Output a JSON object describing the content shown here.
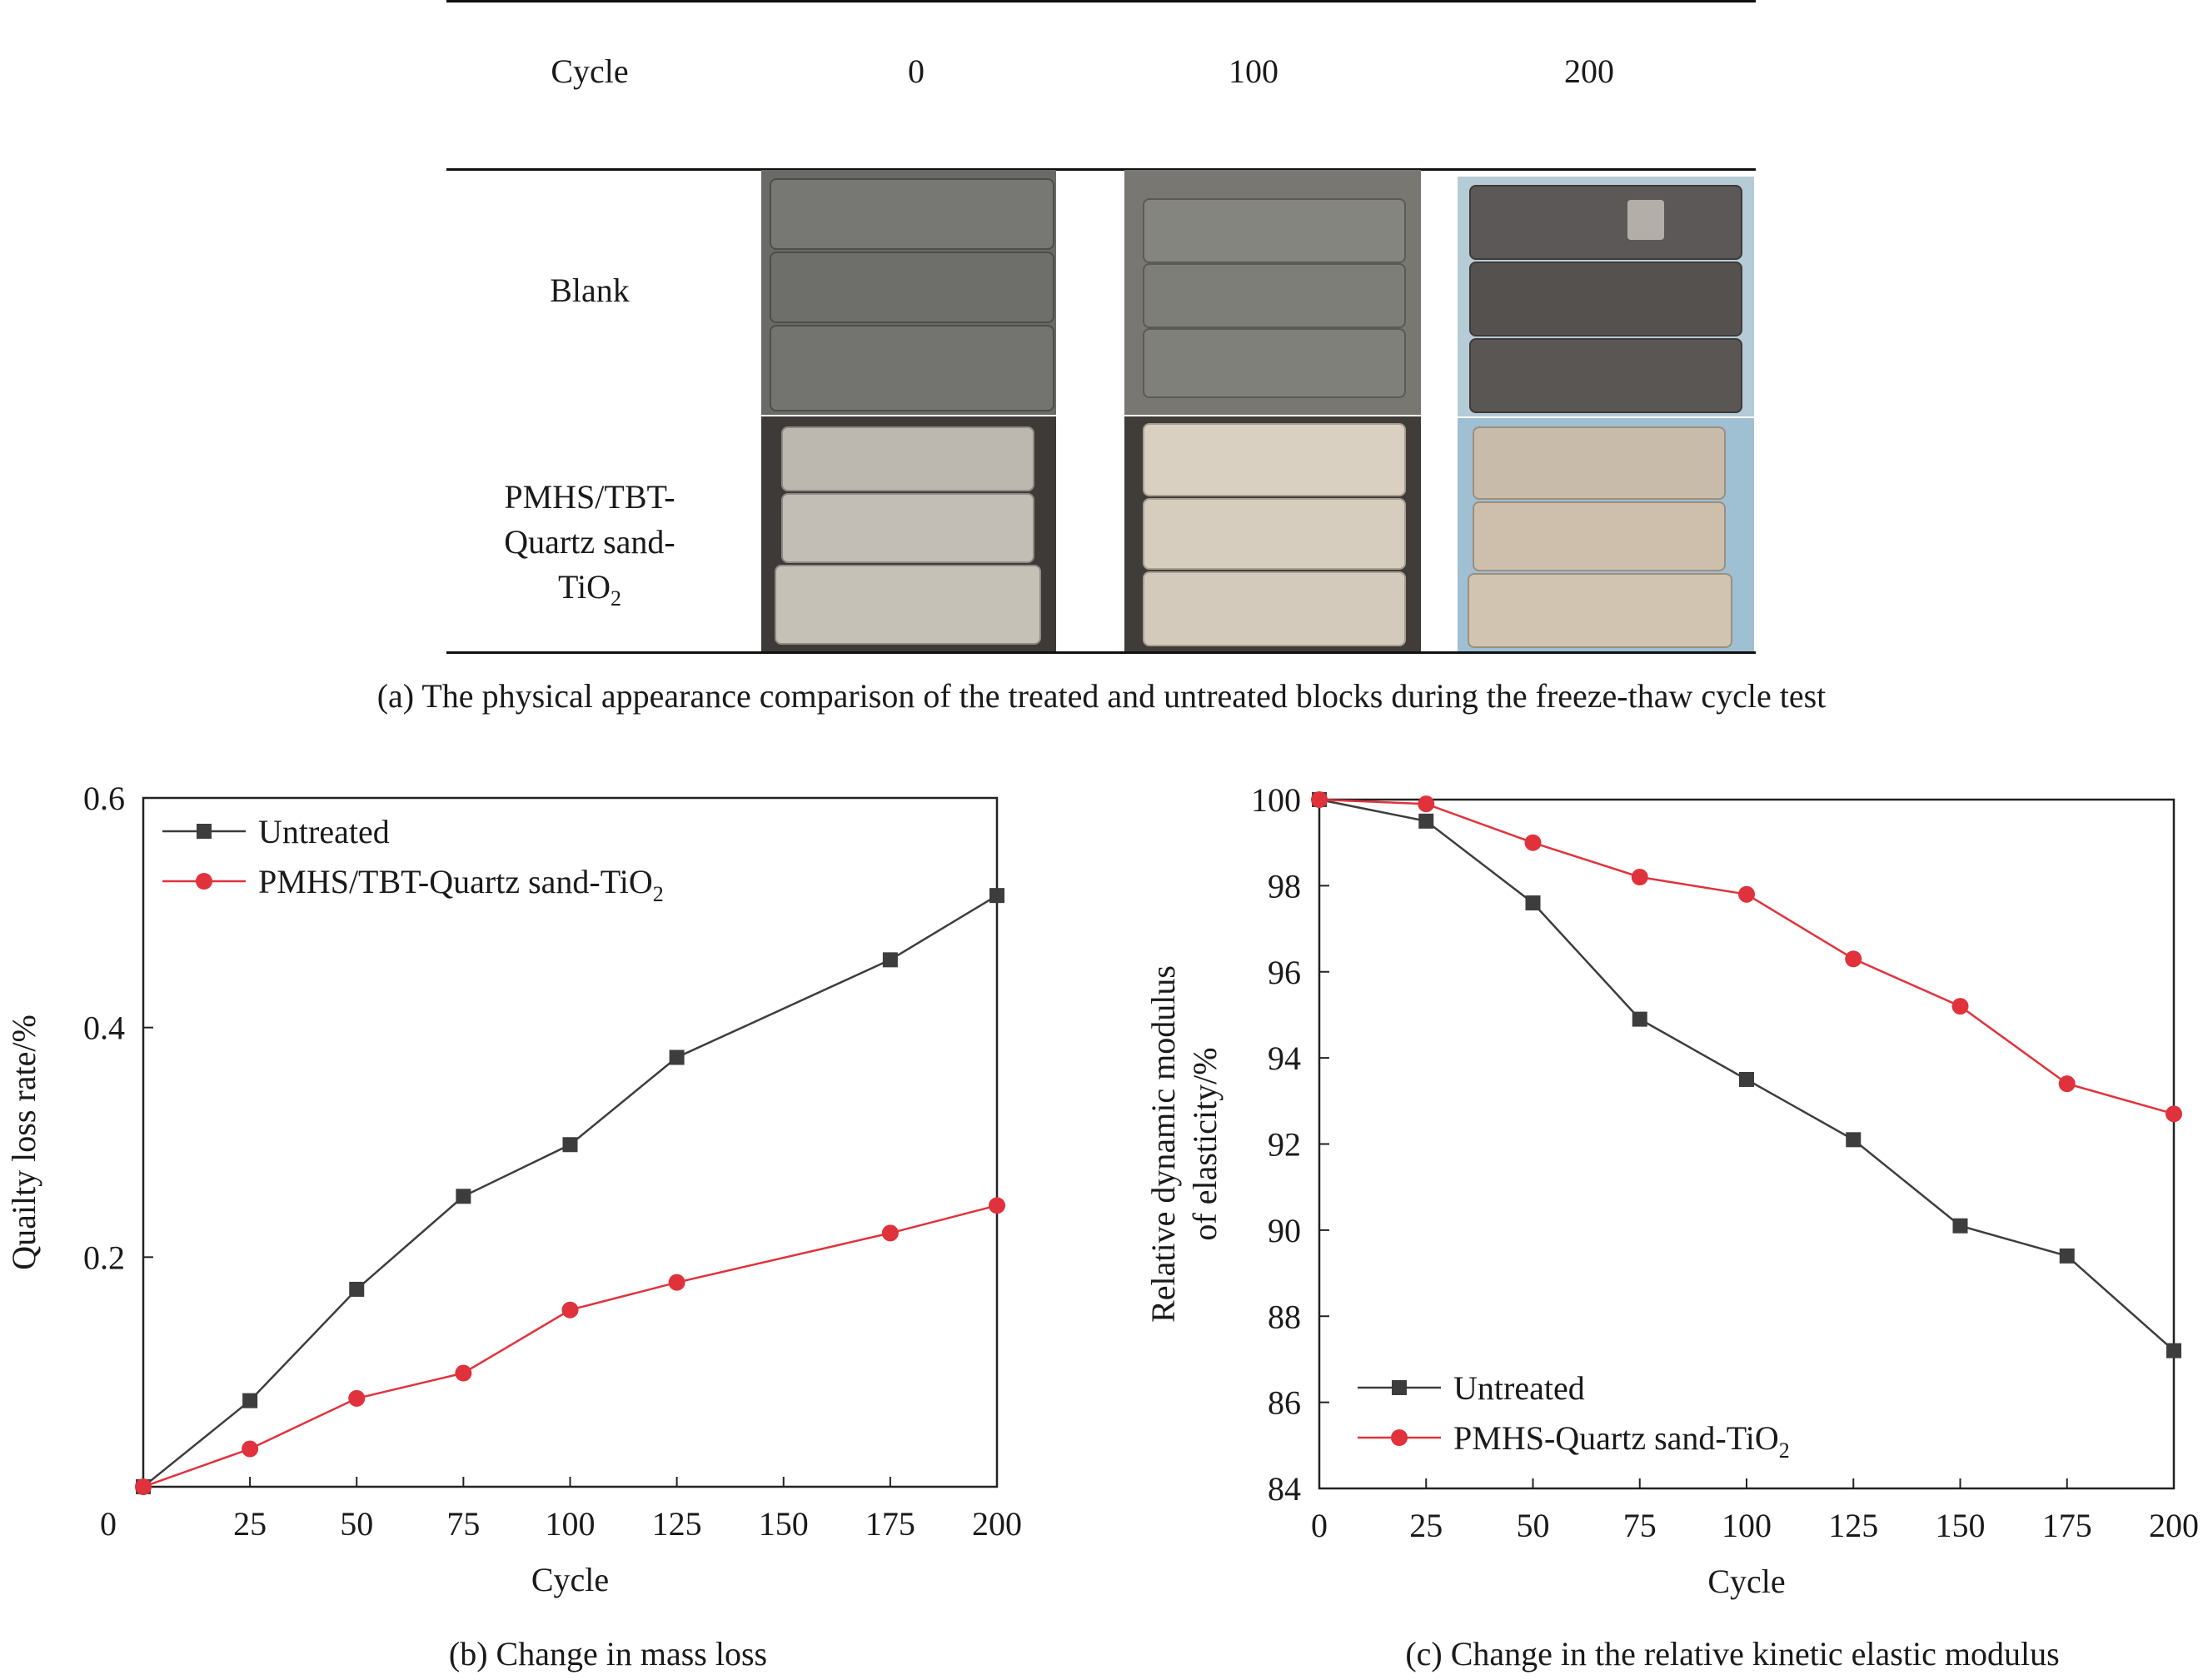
{
  "table": {
    "cycle_label": "Cycle",
    "cycles": [
      "0",
      "100",
      "200"
    ],
    "row_blank": "Blank",
    "row_treated_line1": "PMHS/TBT-",
    "row_treated_line2": "Quartz sand-",
    "row_treated_line3_main": "TiO",
    "row_treated_line3_sub": "2"
  },
  "captions": {
    "a": "(a) The physical appearance comparison of the treated and untreated blocks during the freeze-thaw cycle test",
    "b": "(b) Change in mass loss",
    "c": "(c) Change in the relative kinetic elastic modulus"
  },
  "colors": {
    "untreated": "#3d3d3d",
    "treated": "#e0323c"
  },
  "chart_data": [
    {
      "type": "line",
      "xlabel": "Cycle",
      "ylabel": "Quailty loss rate/%",
      "x": [
        0,
        25,
        50,
        75,
        100,
        125,
        175,
        200
      ],
      "xticks": [
        "0",
        "25",
        "50",
        "75",
        "100",
        "125",
        "150",
        "175",
        "200"
      ],
      "yticks": [
        "0.2",
        "0.4",
        "0.6"
      ],
      "xlim": [
        0,
        200
      ],
      "ylim": [
        0,
        0.6
      ],
      "legend_position": "top-left",
      "series": [
        {
          "name": "Untreated",
          "marker": "square",
          "values": [
            0,
            0.075,
            0.172,
            0.253,
            0.298,
            0.374,
            0.459,
            0.515
          ]
        },
        {
          "name_main": "PMHS/TBT-Quartz sand-TiO",
          "name_sub": "2",
          "marker": "circle",
          "values": [
            0,
            0.033,
            0.077,
            0.099,
            0.154,
            0.178,
            0.221,
            0.245
          ]
        }
      ]
    },
    {
      "type": "line",
      "xlabel": "Cycle",
      "ylabel_line1": "Relative dynamic modulus",
      "ylabel_line2": "of elasticity/%",
      "x": [
        0,
        25,
        50,
        75,
        100,
        125,
        150,
        175,
        200
      ],
      "xticks": [
        "0",
        "25",
        "50",
        "75",
        "100",
        "125",
        "150",
        "175",
        "200"
      ],
      "yticks": [
        "84",
        "86",
        "88",
        "90",
        "92",
        "94",
        "96",
        "98",
        "100"
      ],
      "xlim": [
        0,
        200
      ],
      "ylim": [
        84,
        100
      ],
      "legend_position": "bottom-left",
      "series": [
        {
          "name": "Untreated",
          "marker": "square",
          "values": [
            100,
            99.5,
            97.6,
            94.9,
            93.5,
            92.1,
            90.1,
            89.4,
            87.2
          ]
        },
        {
          "name_main": "PMHS-Quartz sand-TiO",
          "name_sub": "2",
          "marker": "circle",
          "values": [
            100,
            99.9,
            99.0,
            98.2,
            97.8,
            96.3,
            95.2,
            93.4,
            92.7
          ]
        }
      ]
    }
  ]
}
